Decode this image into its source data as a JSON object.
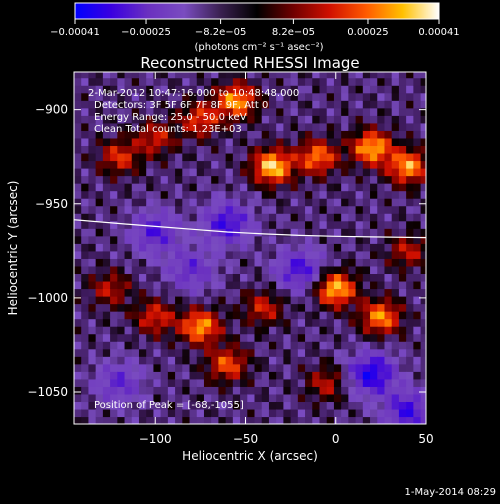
{
  "chart_data": {
    "type": "heatmap",
    "title": "Reconstructed RHESSI Image",
    "xlabel": "Heliocentric X (arcsec)",
    "ylabel": "Heliocentric Y (arcsec)",
    "xlim": [
      -145,
      50
    ],
    "ylim": [
      -1067,
      -880
    ],
    "x_ticks": [
      -100,
      -50,
      0,
      50
    ],
    "x_tick_labels": [
      "−100",
      "−50",
      "0",
      "50"
    ],
    "y_ticks": [
      -900,
      -950,
      -1000,
      -1050
    ],
    "y_tick_labels": [
      "−900",
      "−950",
      "−1000",
      "−1050"
    ],
    "colorbar": {
      "min": -0.00041,
      "max": 0.00041,
      "ticks": [
        -0.00041,
        -0.00025,
        -8.2e-05,
        8.2e-05,
        0.00025,
        0.00041
      ],
      "tick_labels": [
        "−0.00041",
        "−0.00025",
        "−8.2e−05",
        "8.2e−05",
        "0.00025",
        "0.00041"
      ],
      "unit_label": "(photons cm⁻² s⁻¹ asec⁻²)",
      "colors": [
        "#0000ff",
        "#4000c8",
        "#6a3cb0",
        "#7a4cc0",
        "#000000",
        "#5a0000",
        "#b00000",
        "#ff3000",
        "#ff8000",
        "#ffd000",
        "#ffffff"
      ]
    },
    "limb_curve": {
      "x": [
        -145,
        -120,
        -100,
        -80,
        -60,
        -40,
        -20,
        0,
        20,
        50
      ],
      "y": [
        -958.5,
        -960.5,
        -962,
        -963.5,
        -965,
        -966,
        -966.8,
        -967.3,
        -967.6,
        -968
      ]
    },
    "hotspots": [
      {
        "x": -55,
        "y": -895,
        "level": 0.85
      },
      {
        "x": -75,
        "y": -905,
        "level": 0.6
      },
      {
        "x": -35,
        "y": -930,
        "level": 1.0
      },
      {
        "x": -10,
        "y": -925,
        "level": 0.75
      },
      {
        "x": 20,
        "y": -920,
        "level": 0.9
      },
      {
        "x": 40,
        "y": -930,
        "level": 0.85
      },
      {
        "x": -120,
        "y": -925,
        "level": 0.55
      },
      {
        "x": -100,
        "y": -915,
        "level": 0.5
      },
      {
        "x": 0,
        "y": -995,
        "level": 0.95
      },
      {
        "x": 25,
        "y": -1010,
        "level": 0.8
      },
      {
        "x": -75,
        "y": -1015,
        "level": 0.85
      },
      {
        "x": -60,
        "y": -1035,
        "level": 0.65
      },
      {
        "x": -100,
        "y": -1010,
        "level": 0.55
      },
      {
        "x": -125,
        "y": -995,
        "level": 0.45
      },
      {
        "x": -40,
        "y": -1005,
        "level": 0.5
      },
      {
        "x": -5,
        "y": -1045,
        "level": 0.45
      },
      {
        "x": 40,
        "y": -975,
        "level": 0.45
      }
    ],
    "coldspots": [
      {
        "x": -60,
        "y": -960,
        "level": 0.7
      },
      {
        "x": -100,
        "y": -965,
        "level": 0.6
      },
      {
        "x": -20,
        "y": -985,
        "level": 0.65
      },
      {
        "x": 20,
        "y": -1040,
        "level": 0.85
      },
      {
        "x": 40,
        "y": -1060,
        "level": 0.7
      },
      {
        "x": -120,
        "y": -1045,
        "level": 0.5
      },
      {
        "x": -80,
        "y": -985,
        "level": 0.5
      }
    ]
  },
  "annotations": {
    "time_range": "2-Mar-2012 10:47:16.000 to 10:48:48.000",
    "detectors": "Detectors: 3F 5F 6F 7F 8F 9F, Att 0",
    "energy_range": "Energy Range: 25.0 - 50.0 keV",
    "clean_counts": "Clean    Total counts: 1.23E+03",
    "peak_position": "Position of Peak = [-68,-1055]"
  },
  "footer_date": "1-May-2014 08:29"
}
